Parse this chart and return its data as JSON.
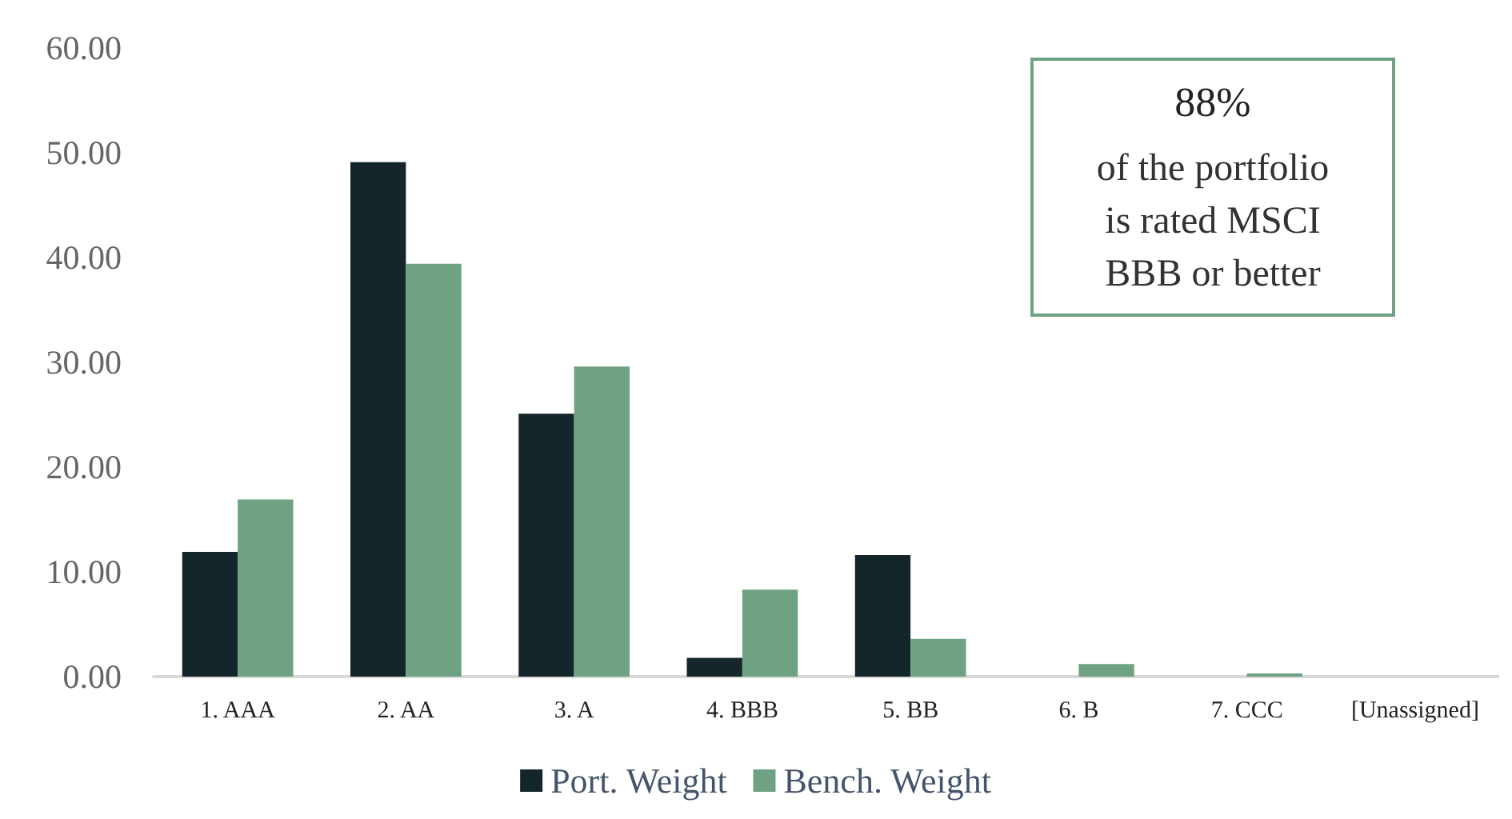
{
  "chart_data": {
    "type": "bar",
    "categories": [
      "1. AAA",
      "2. AA",
      "3. A",
      "4. BBB",
      "5. BB",
      "6. B",
      "7. CCC",
      "[Unassigned]"
    ],
    "series": [
      {
        "name": "Port. Weight",
        "color": "#14262a",
        "values": [
          11.9,
          49.1,
          25.1,
          1.8,
          11.6,
          0,
          0,
          0
        ]
      },
      {
        "name": "Bench. Weight",
        "color": "#6fa283",
        "values": [
          16.9,
          39.4,
          29.6,
          8.3,
          3.6,
          1.2,
          0.3,
          0
        ]
      }
    ],
    "ylim": [
      0,
      60
    ],
    "yticks": [
      {
        "value": 0,
        "label": "0.00"
      },
      {
        "value": 10,
        "label": "10.00"
      },
      {
        "value": 20,
        "label": "20.00"
      },
      {
        "value": 30,
        "label": "30.00"
      },
      {
        "value": 40,
        "label": "40.00"
      },
      {
        "value": 50,
        "label": "50.00"
      },
      {
        "value": 60,
        "label": "60.00"
      }
    ],
    "grid": false,
    "legend": "bottom",
    "annotations": [
      "88%\nof the portfolio\nis rated MSCI\nBBB or better"
    ]
  }
}
